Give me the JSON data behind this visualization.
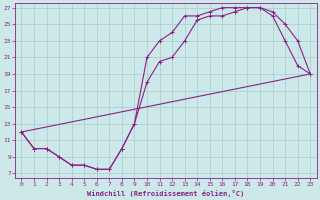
{
  "xlabel": "Windchill (Refroidissement éolien,°C)",
  "bg_color": "#cce8e8",
  "line_color": "#882288",
  "grid_color": "#aacccc",
  "xlim": [
    -0.5,
    23.5
  ],
  "ylim": [
    6.5,
    27.5
  ],
  "xticks": [
    0,
    1,
    2,
    3,
    4,
    5,
    6,
    7,
    8,
    9,
    10,
    11,
    12,
    13,
    14,
    15,
    16,
    17,
    18,
    19,
    20,
    21,
    22,
    23
  ],
  "yticks": [
    7,
    9,
    11,
    13,
    15,
    17,
    19,
    21,
    23,
    25,
    27
  ],
  "series": [
    {
      "x": [
        0,
        1,
        2,
        3,
        4,
        5,
        6,
        7,
        8,
        9,
        10,
        11,
        12,
        13,
        14,
        15,
        16,
        17,
        18,
        19,
        20,
        21,
        22,
        23
      ],
      "y": [
        12,
        10,
        10,
        9,
        8,
        8,
        7.5,
        7.5,
        10,
        13,
        21,
        23,
        24,
        26,
        26,
        26.5,
        27,
        27,
        27,
        27,
        26.5,
        25,
        23,
        19
      ]
    },
    {
      "x": [
        0,
        1,
        2,
        3,
        4,
        5,
        6,
        7,
        8,
        9,
        10,
        11,
        12,
        13,
        14,
        15,
        16,
        17,
        18,
        19,
        20,
        21,
        22,
        23
      ],
      "y": [
        12,
        10,
        10,
        9,
        8,
        8,
        7.5,
        7.5,
        10,
        13,
        18,
        20.5,
        21,
        23,
        25.5,
        26,
        26,
        26.5,
        27,
        27,
        26,
        23,
        20,
        19
      ]
    },
    {
      "x": [
        0,
        23
      ],
      "y": [
        12,
        19
      ]
    }
  ]
}
